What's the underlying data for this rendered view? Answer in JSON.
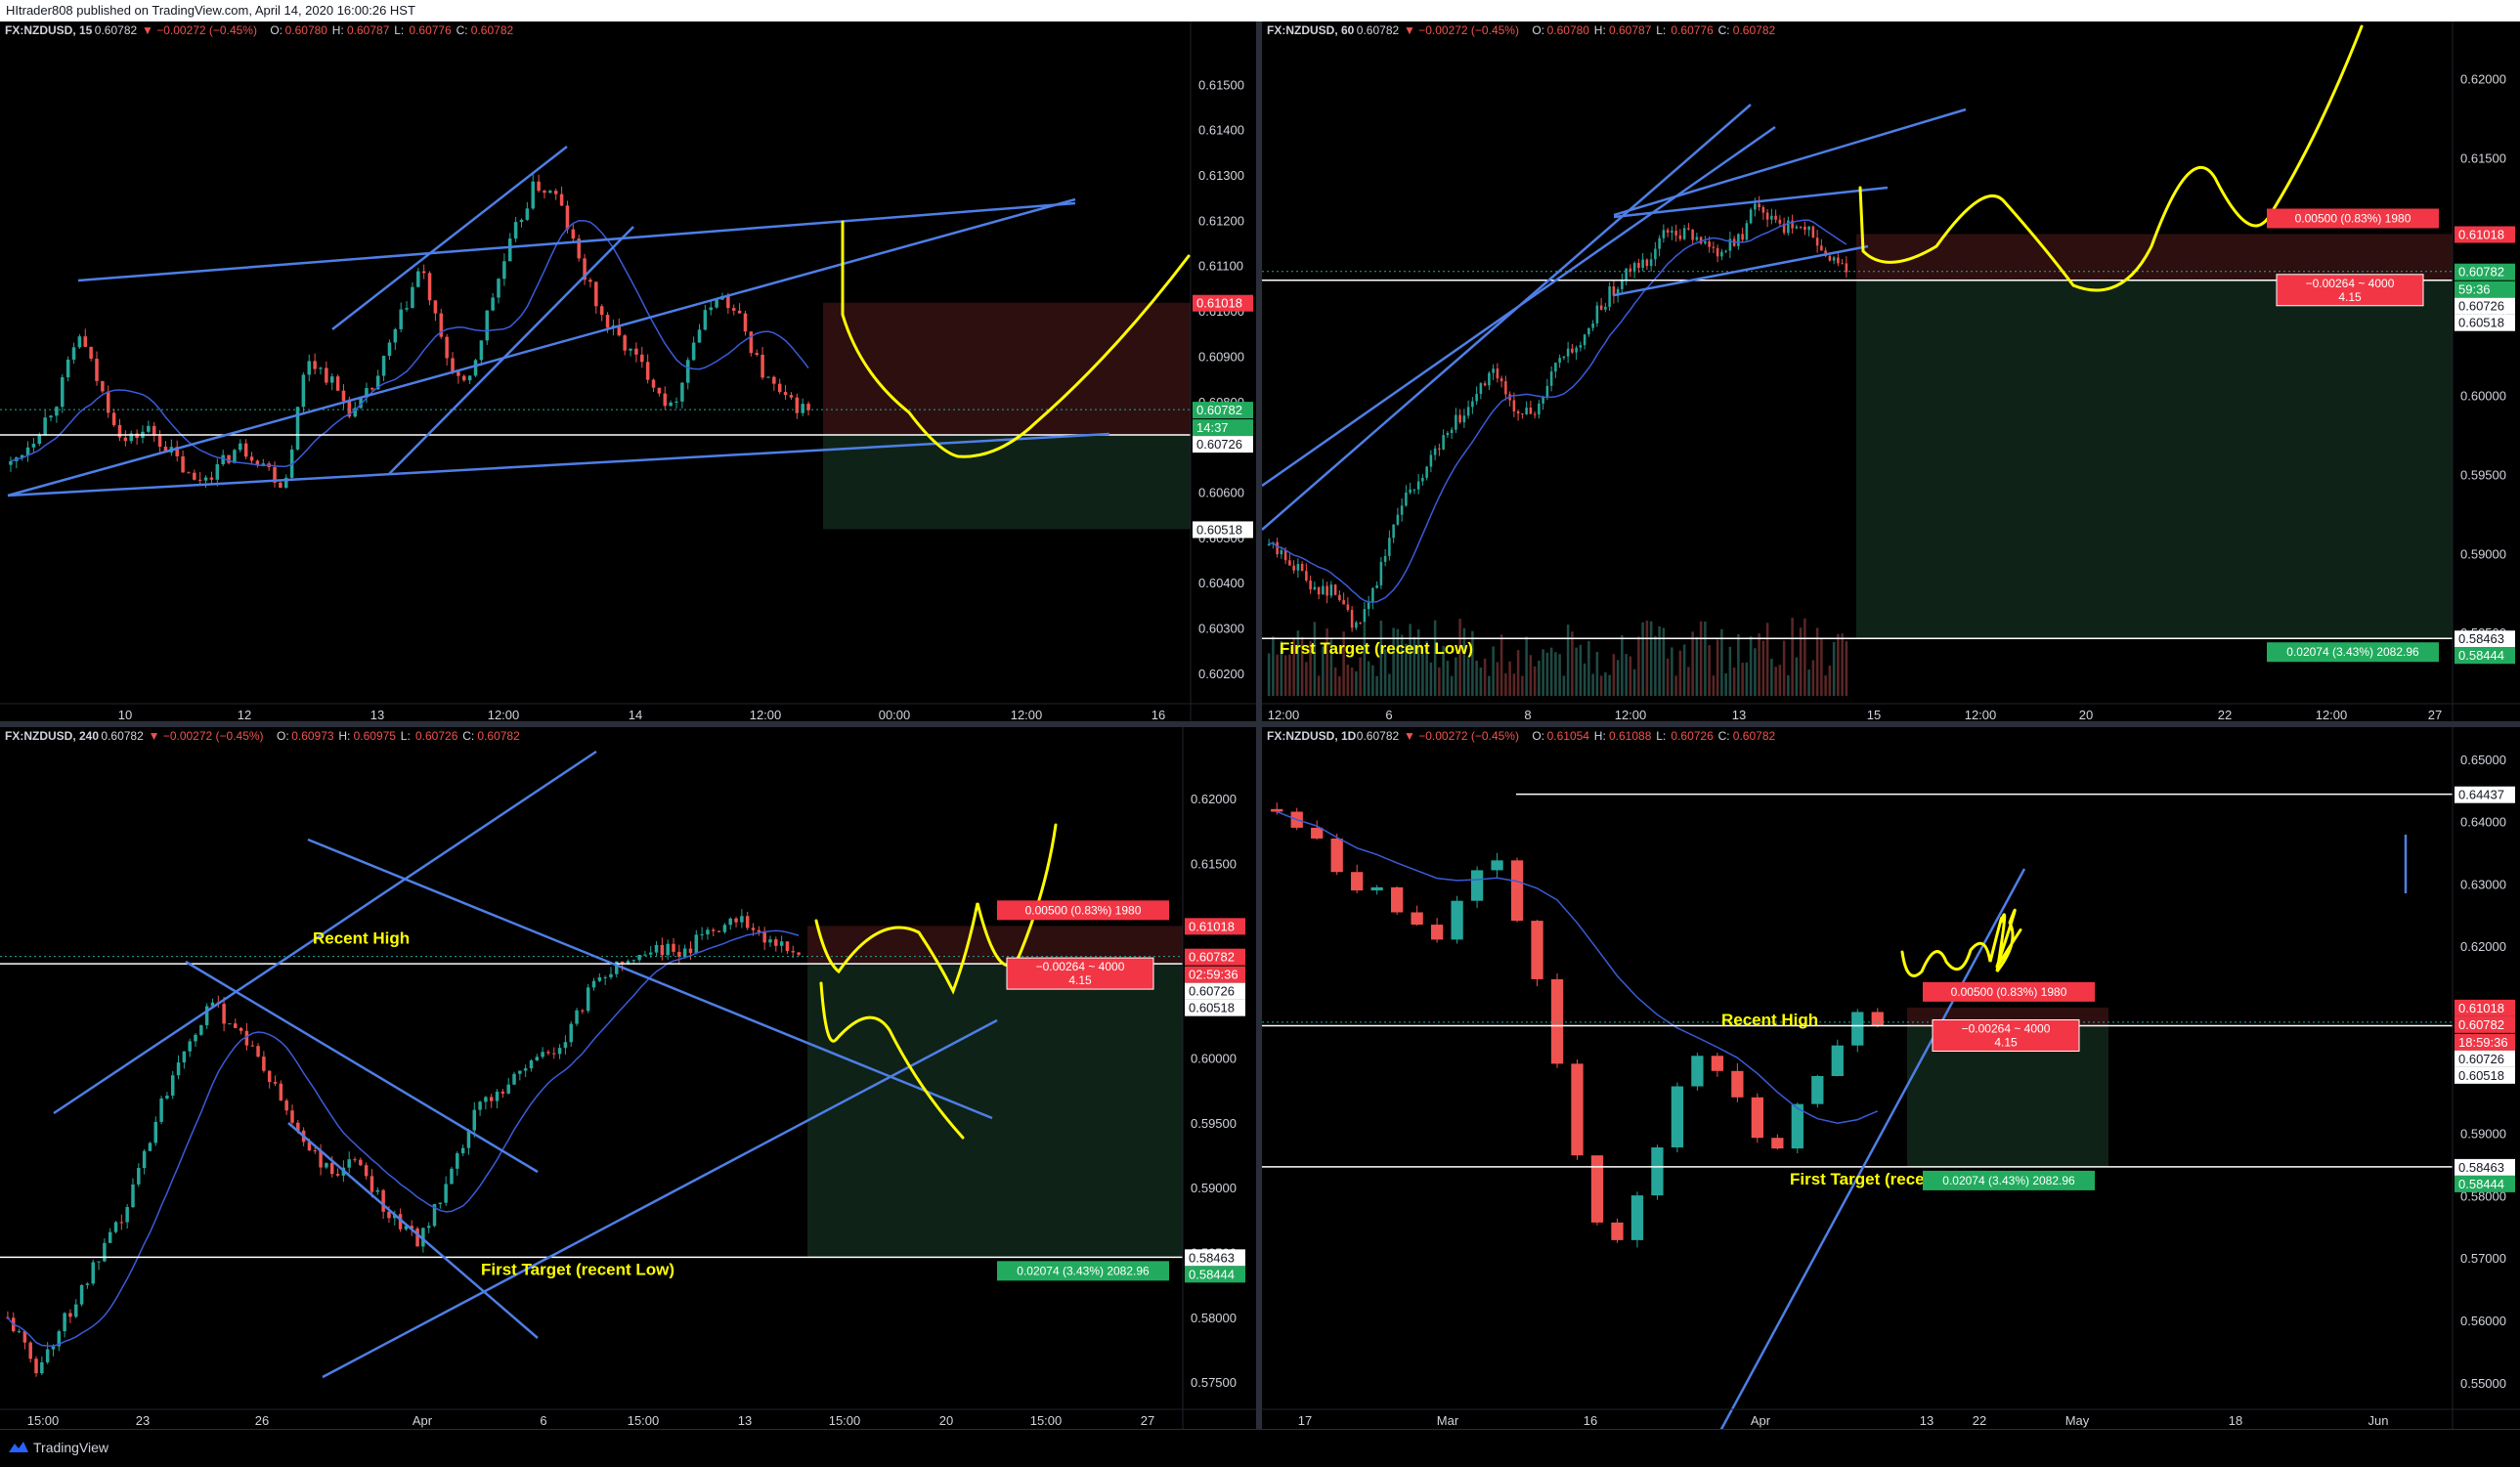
{
  "header": {
    "publish_line": "HItrader808 published on TradingView.com, April 14, 2020 16:00:26 HST"
  },
  "footer": {
    "brand": "TradingView"
  },
  "colors": {
    "up": "#26a69a",
    "down": "#ef5350",
    "trend": "#4e7fe6",
    "ma": "#3a5bd9",
    "drawing": "#ffff00",
    "stop_zone": "#2d0f0f",
    "target_zone": "#0f2218",
    "red_label": "#f23645",
    "green_label": "#22ab5e"
  },
  "panels": [
    {
      "id": "tl",
      "ohlc_header": {
        "symbol": "FX:NZDUSD, 15",
        "price": "0.60782",
        "change": "▼ −0.00272 (−0.45%)",
        "o": "O:",
        "o_val": "0.60780",
        "h": "H:",
        "h_val": "0.60787",
        "l": "L:",
        "l_val": "0.60776",
        "c": "C:",
        "c_val": "0.60782"
      },
      "price_ticks": [
        "0.61500",
        "0.61400",
        "0.61300",
        "0.61200",
        "0.61100",
        "0.61000",
        "0.60900",
        "0.60800",
        "0.60700",
        "0.60600",
        "0.60500",
        "0.60400",
        "0.60300",
        "0.60200"
      ],
      "time_ticks": [
        "10",
        "12",
        "13",
        "12:00",
        "14",
        "12:00",
        "00:00",
        "12:00",
        "16"
      ],
      "price_labels": [
        {
          "text": "0.61018",
          "kind": "red"
        },
        {
          "text": "0.60782",
          "kind": "green"
        },
        {
          "text": "14:37",
          "kind": "green"
        },
        {
          "text": "0.60726",
          "kind": "white"
        },
        {
          "text": "0.60518",
          "kind": "white"
        }
      ],
      "drawing_labels": []
    },
    {
      "id": "tr",
      "ohlc_header": {
        "symbol": "FX:NZDUSD, 60",
        "price": "0.60782",
        "change": "▼ −0.00272 (−0.45%)",
        "o": "O:",
        "o_val": "0.60780",
        "h": "H:",
        "h_val": "0.60787",
        "l": "L:",
        "l_val": "0.60776",
        "c": "C:",
        "c_val": "0.60782"
      },
      "price_ticks": [
        "0.62000",
        "0.61500",
        "0.61000",
        "0.60500",
        "0.60000",
        "0.59500",
        "0.59000",
        "0.58500"
      ],
      "time_ticks": [
        "12:00",
        "6",
        "8",
        "12:00",
        "13",
        "15",
        "12:00",
        "20",
        "22",
        "12:00",
        "27"
      ],
      "price_labels": [
        {
          "text": "0.61018",
          "kind": "red"
        },
        {
          "text": "0.60782",
          "kind": "green"
        },
        {
          "text": "59:36",
          "kind": "green"
        },
        {
          "text": "0.60726",
          "kind": "white"
        },
        {
          "text": "0.60518",
          "kind": "white"
        },
        {
          "text": "0.58463",
          "kind": "white"
        },
        {
          "text": "0.58444",
          "kind": "green"
        }
      ],
      "drawing_labels": [
        "First Target (recent Low)"
      ],
      "position_boxes": [
        "0.00500 (0.83%) 1980",
        "−0.00264 ~ 4000",
        "4.15",
        "0.02074 (3.43%) 2082.96"
      ]
    },
    {
      "id": "bl",
      "ohlc_header": {
        "symbol": "FX:NZDUSD, 240",
        "price": "0.60782",
        "change": "▼ −0.00272 (−0.45%)",
        "o": "O:",
        "o_val": "0.60973",
        "h": "H:",
        "h_val": "0.60975",
        "l": "L:",
        "l_val": "0.60726",
        "c": "C:",
        "c_val": "0.60782"
      },
      "price_ticks": [
        "0.62000",
        "0.61500",
        "0.61000",
        "0.60500",
        "0.60000",
        "0.59500",
        "0.59000",
        "0.58500",
        "0.58000",
        "0.57500"
      ],
      "time_ticks": [
        "15:00",
        "23",
        "26",
        "Apr",
        "6",
        "15:00",
        "13",
        "15:00",
        "20",
        "15:00",
        "27"
      ],
      "price_labels": [
        {
          "text": "0.61018",
          "kind": "red"
        },
        {
          "text": "0.60782",
          "kind": "red"
        },
        {
          "text": "02:59:36",
          "kind": "red"
        },
        {
          "text": "0.60726",
          "kind": "white"
        },
        {
          "text": "0.60518",
          "kind": "white"
        },
        {
          "text": "0.58463",
          "kind": "white"
        },
        {
          "text": "0.58444",
          "kind": "green"
        }
      ],
      "drawing_labels": [
        "Recent High",
        "First Target (recent Low)"
      ],
      "position_boxes": [
        "0.00500 (0.83%) 1980",
        "−0.00264 ~ 4000",
        "4.15",
        "0.02074 (3.43%) 2082.96"
      ]
    },
    {
      "id": "br",
      "ohlc_header": {
        "symbol": "FX:NZDUSD, 1D",
        "price": "0.60782",
        "change": "▼ −0.00272 (−0.45%)",
        "o": "O:",
        "o_val": "0.61054",
        "h": "H:",
        "h_val": "0.61088",
        "l": "L:",
        "l_val": "0.60726",
        "c": "C:",
        "c_val": "0.60782"
      },
      "price_ticks": [
        "0.65000",
        "0.64000",
        "0.63000",
        "0.62000",
        "0.61000",
        "0.60000",
        "0.59000",
        "0.58000",
        "0.57000",
        "0.56000",
        "0.55000"
      ],
      "time_ticks": [
        "17",
        "Mar",
        "16",
        "Apr",
        "13",
        "22",
        "May",
        "18",
        "Jun"
      ],
      "price_labels": [
        {
          "text": "0.64437",
          "kind": "white"
        },
        {
          "text": "0.61018",
          "kind": "red"
        },
        {
          "text": "0.60782",
          "kind": "red"
        },
        {
          "text": "18:59:36",
          "kind": "red"
        },
        {
          "text": "0.60726",
          "kind": "white"
        },
        {
          "text": "0.60518",
          "kind": "white"
        },
        {
          "text": "0.58463",
          "kind": "white"
        },
        {
          "text": "0.58444",
          "kind": "green"
        }
      ],
      "drawing_labels": [
        "Recent High",
        "First Target (recent Low)"
      ],
      "position_boxes": [
        "0.00500 (0.83%) 1980",
        "−0.00264 ~ 4000",
        "4.15",
        "0.02074 (3.43%) 2082.96"
      ]
    }
  ],
  "chart_data": [
    {
      "type": "line",
      "title": "FX:NZDUSD, 15",
      "ylim": [
        0.6015,
        0.616
      ],
      "x_ticks": [
        "10",
        "12",
        "13",
        "12:00",
        "14",
        "12:00",
        "00:00",
        "12:00",
        "16"
      ],
      "levels": {
        "last": 0.60782,
        "stop": 0.61018,
        "entry": 0.60726,
        "target": 0.60518
      },
      "series": [
        {
          "values": [
            0.6066,
            0.6072,
            0.608,
            0.6095,
            0.6082,
            0.6071,
            0.6074,
            0.6069,
            0.6062,
            0.6065,
            0.607,
            0.6067,
            0.6061,
            0.609,
            0.6085,
            0.6077,
            0.6084,
            0.6097,
            0.611,
            0.6091,
            0.6082,
            0.6101,
            0.6116,
            0.6128,
            0.6125,
            0.611,
            0.6098,
            0.6092,
            0.6086,
            0.6078,
            0.6094,
            0.6104,
            0.6098,
            0.6086,
            0.608,
            0.6078
          ]
        }
      ]
    },
    {
      "type": "line",
      "title": "FX:NZDUSD, 60",
      "ylim": [
        0.581,
        0.6225
      ],
      "x_ticks": [
        "12:00",
        "6",
        "8",
        "12:00",
        "13",
        "15",
        "12:00",
        "20",
        "22",
        "12:00",
        "27"
      ],
      "levels": {
        "last": 0.60782,
        "stop": 0.61018,
        "entry": 0.60726,
        "target": 0.58463,
        "target2": 0.58444
      },
      "series": [
        {
          "values": [
            0.5905,
            0.5895,
            0.588,
            0.5875,
            0.585,
            0.589,
            0.5935,
            0.595,
            0.598,
            0.599,
            0.6015,
            0.5995,
            0.5985,
            0.602,
            0.603,
            0.6058,
            0.6075,
            0.6085,
            0.6105,
            0.61,
            0.609,
            0.6095,
            0.612,
            0.6105,
            0.611,
            0.609,
            0.6078
          ]
        }
      ]
    },
    {
      "type": "line",
      "title": "FX:NZDUSD, 240",
      "ylim": [
        0.5735,
        0.624
      ],
      "x_ticks": [
        "15:00",
        "23",
        "26",
        "Apr",
        "6",
        "15:00",
        "13",
        "15:00",
        "20",
        "15:00",
        "27"
      ],
      "levels": {
        "last": 0.60782,
        "stop": 0.61018,
        "entry": 0.60726,
        "target": 0.58463,
        "target2": 0.58444
      },
      "series": [
        {
          "values": [
            0.58,
            0.576,
            0.58,
            0.584,
            0.588,
            0.595,
            0.601,
            0.604,
            0.602,
            0.598,
            0.594,
            0.591,
            0.592,
            0.588,
            0.586,
            0.59,
            0.596,
            0.598,
            0.6,
            0.601,
            0.606,
            0.6075,
            0.6085,
            0.608,
            0.61,
            0.611,
            0.609,
            0.6078
          ]
        }
      ]
    },
    {
      "type": "line",
      "title": "FX:NZDUSD, 1D",
      "ylim": [
        0.547,
        0.652
      ],
      "x_ticks": [
        "17",
        "Mar",
        "16",
        "Apr",
        "13",
        "22",
        "May",
        "18",
        "Jun"
      ],
      "levels": {
        "last": 0.60782,
        "stop": 0.61018,
        "entry": 0.60726,
        "target": 0.58463,
        "target2": 0.58444,
        "high": 0.64437
      },
      "series": [
        {
          "values": [
            0.642,
            0.64,
            0.638,
            0.633,
            0.63,
            0.629,
            0.626,
            0.624,
            0.622,
            0.628,
            0.631,
            0.633,
            0.625,
            0.615,
            0.6,
            0.587,
            0.575,
            0.572,
            0.579,
            0.588,
            0.597,
            0.603,
            0.6,
            0.595,
            0.589,
            0.588,
            0.595,
            0.6,
            0.605,
            0.609,
            0.608
          ]
        }
      ]
    }
  ]
}
